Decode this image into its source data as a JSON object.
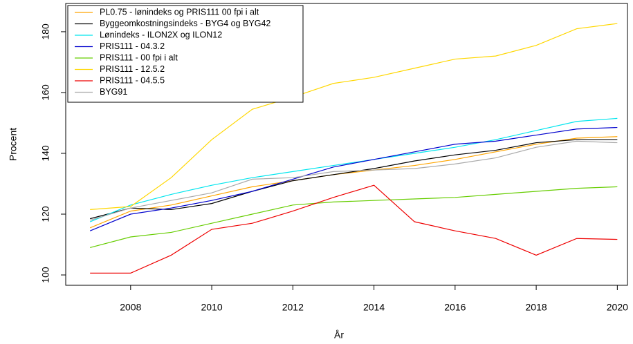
{
  "chart_data": {
    "type": "line",
    "x_label": "År",
    "y_label": "Procent",
    "x": [
      2007,
      2008,
      2009,
      2010,
      2011,
      2012,
      2013,
      2014,
      2015,
      2016,
      2017,
      2018,
      2019,
      2020
    ],
    "series": [
      {
        "name": "PL0.75 - lønindeks og PRIS111 00 fpi i alt",
        "color": "#ffa500",
        "values": [
          115.5,
          121,
          123,
          126,
          129,
          131,
          133,
          134.5,
          136,
          138,
          140.5,
          143,
          145,
          145.5
        ]
      },
      {
        "name": "Byggeomkostningsindeks - BYG4 og BYG42",
        "color": "#000000",
        "values": [
          118.5,
          122,
          121.5,
          123.5,
          127.5,
          131,
          133,
          135,
          137.5,
          139.5,
          141,
          143.5,
          144.5,
          144.5
        ]
      },
      {
        "name": "Lønindeks - ILON2X og ILON12",
        "color": "#00e5ee",
        "values": [
          117.5,
          123,
          126.5,
          129.5,
          132,
          134,
          136,
          138,
          140,
          142,
          144.5,
          147.5,
          150.5,
          151.5
        ]
      },
      {
        "name": "PRIS111 - 04.3.2",
        "color": "#0000cd",
        "values": [
          114.5,
          120,
          122,
          124.5,
          127.5,
          131.5,
          135.5,
          138,
          140.5,
          143,
          144,
          146,
          148,
          148.5
        ]
      },
      {
        "name": "PRIS111 - 00 fpi i alt",
        "color": "#66cd00",
        "values": [
          109,
          112.5,
          114,
          117,
          120,
          123,
          124,
          124.5,
          125,
          125.5,
          126.5,
          127.5,
          128.5,
          129
        ]
      },
      {
        "name": "PRIS111 - 12.5.2",
        "color": "#ffd700",
        "values": [
          121.5,
          122.5,
          132,
          144.5,
          154.5,
          158.5,
          163,
          165,
          168,
          171,
          172,
          175.5,
          181,
          182.7
        ]
      },
      {
        "name": "PRIS111 - 04.5.5",
        "color": "#ee0000",
        "values": [
          100.6,
          100.6,
          106.5,
          115,
          117,
          121,
          125.5,
          129.5,
          117.5,
          114.5,
          112,
          106.5,
          112,
          111.7
        ]
      },
      {
        "name": "BYG91",
        "color": "#a9a9a9",
        "values": [
          118,
          122,
          124.5,
          127,
          131.5,
          132,
          134,
          134.5,
          135,
          136.5,
          138.5,
          142,
          144,
          143.5
        ]
      }
    ],
    "xlim": [
      2006.4,
      2020.25
    ],
    "ylim": [
      96.6,
      189.3
    ],
    "xticks": [
      2008,
      2010,
      2012,
      2014,
      2016,
      2018,
      2020
    ],
    "yticks": [
      100,
      120,
      140,
      160,
      180
    ],
    "legend": "top-left"
  }
}
